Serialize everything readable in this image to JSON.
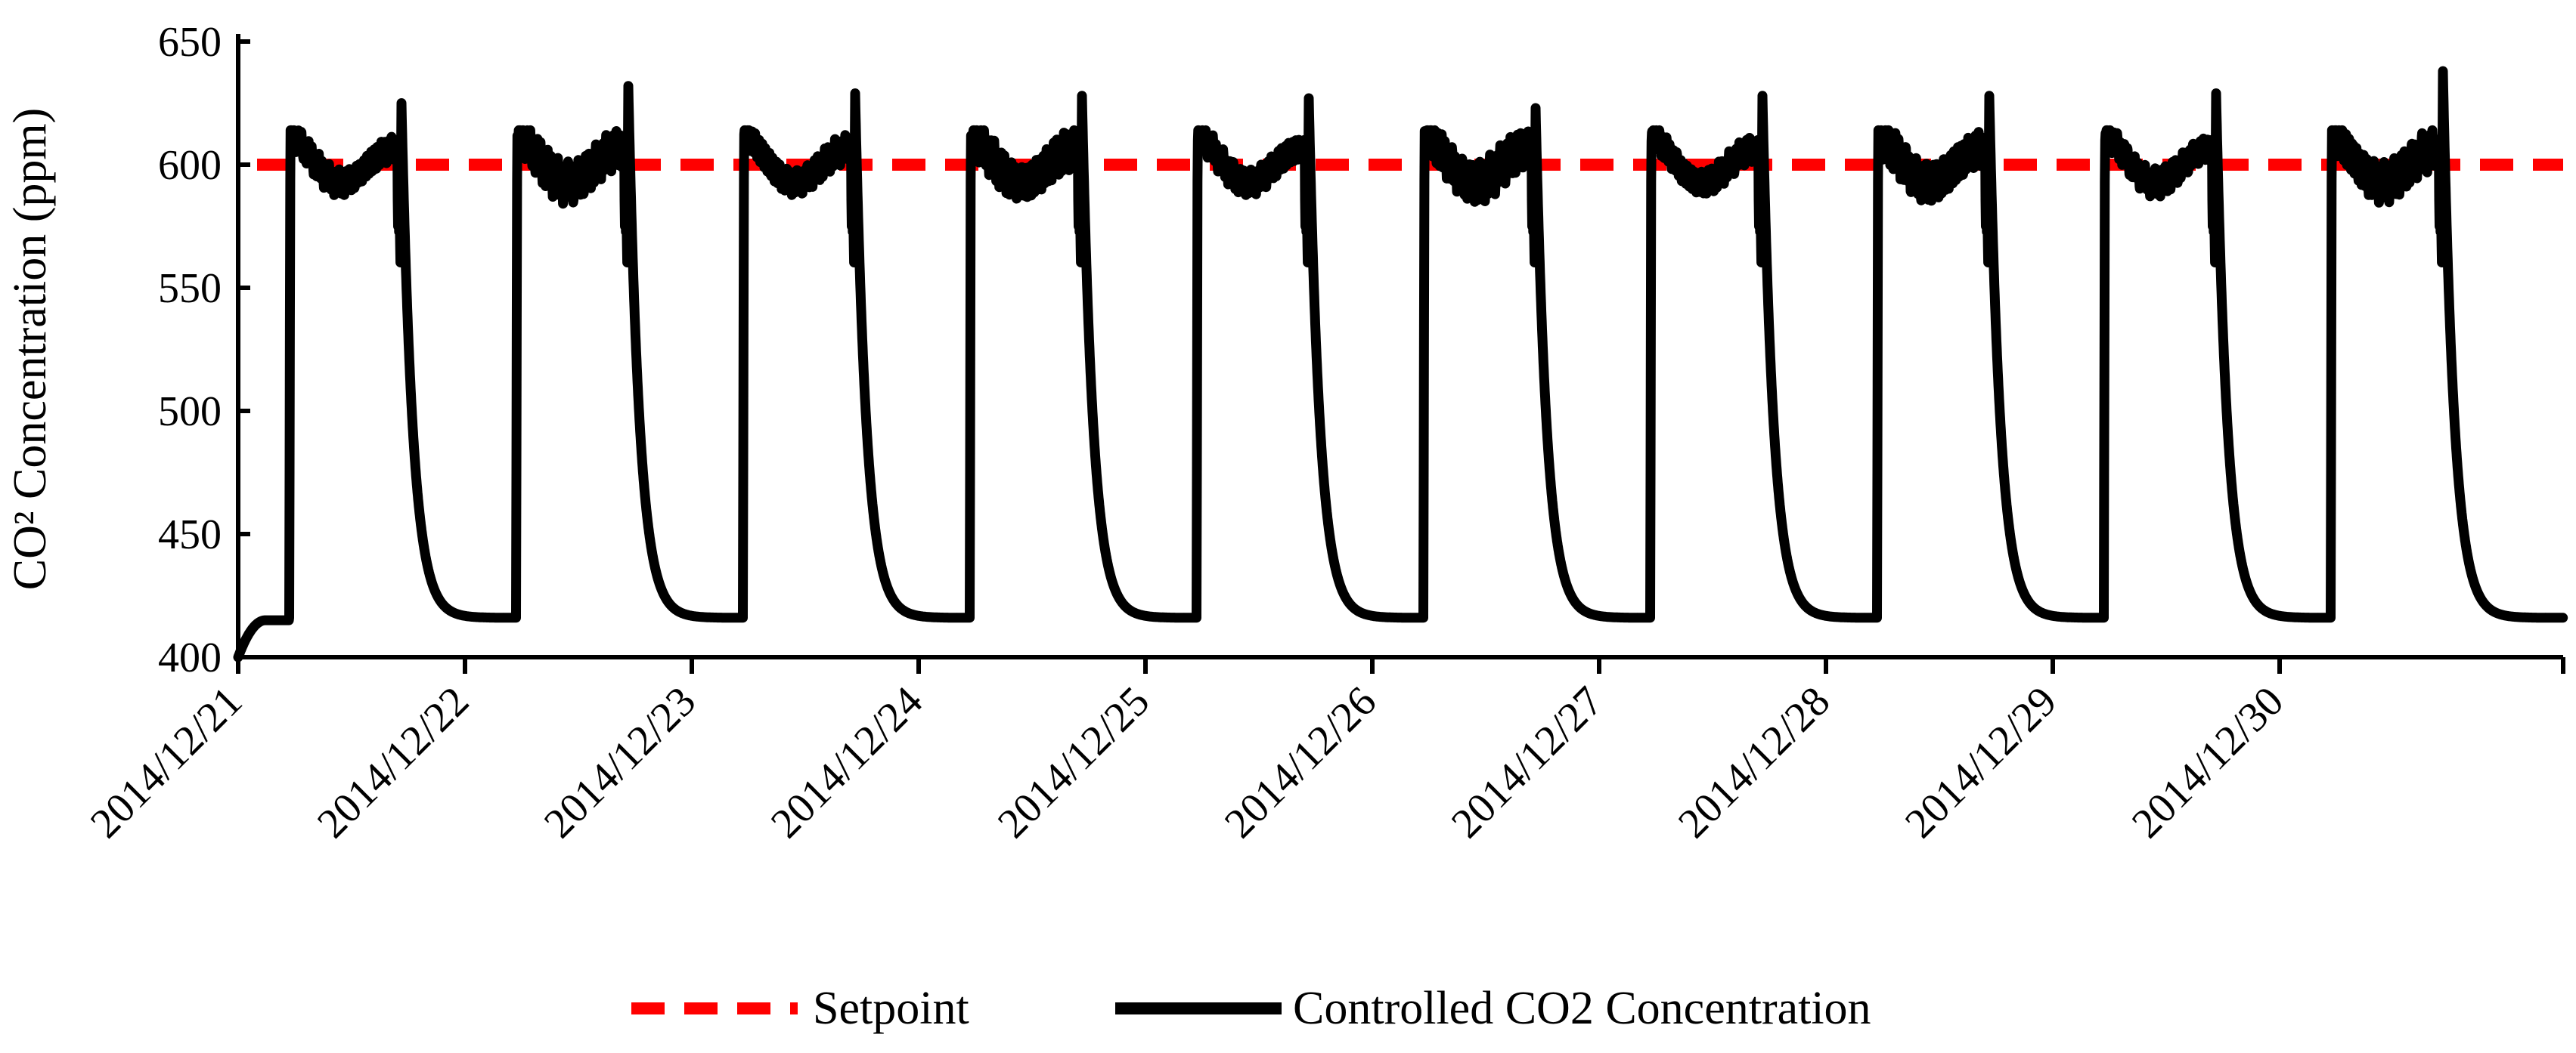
{
  "chart_data": {
    "type": "line",
    "title": "",
    "ylabel": "CO² Concentration (ppm)",
    "xlabel": "",
    "ylim": [
      400,
      650
    ],
    "yticks": [
      400,
      450,
      500,
      550,
      600,
      650
    ],
    "xlim": [
      0,
      10.25
    ],
    "categories": [
      "2014/12/21",
      "2014/12/22",
      "2014/12/23",
      "2014/12/24",
      "2014/12/25",
      "2014/12/26",
      "2014/12/27",
      "2014/12/28",
      "2014/12/29",
      "2014/12/30"
    ],
    "legend_position": "bottom-center",
    "series": [
      {
        "name": "Setpoint",
        "color": "#ff0000",
        "style": "dashed",
        "x": [
          0,
          10.25
        ],
        "values": [
          600,
          600
        ]
      },
      {
        "name": "Controlled CO2 Concentration",
        "color": "#000000",
        "style": "solid",
        "day_cycle": {
          "night_level_ppm": 416,
          "on_time_day_fraction": 0.23,
          "off_time_day_fraction": 0.72,
          "rise_peak_ppm": 613,
          "daytime_band_ppm": [
            590,
            612
          ],
          "dip_before_off_ppm": 570,
          "off_spike_ppm": [
            625,
            632,
            629,
            628,
            627,
            623,
            628,
            628,
            629,
            638
          ],
          "decay_constant_day_fraction": 0.05
        },
        "initial": {
          "start_ppm": 400,
          "pre_rise_ppm": 415
        }
      }
    ]
  }
}
